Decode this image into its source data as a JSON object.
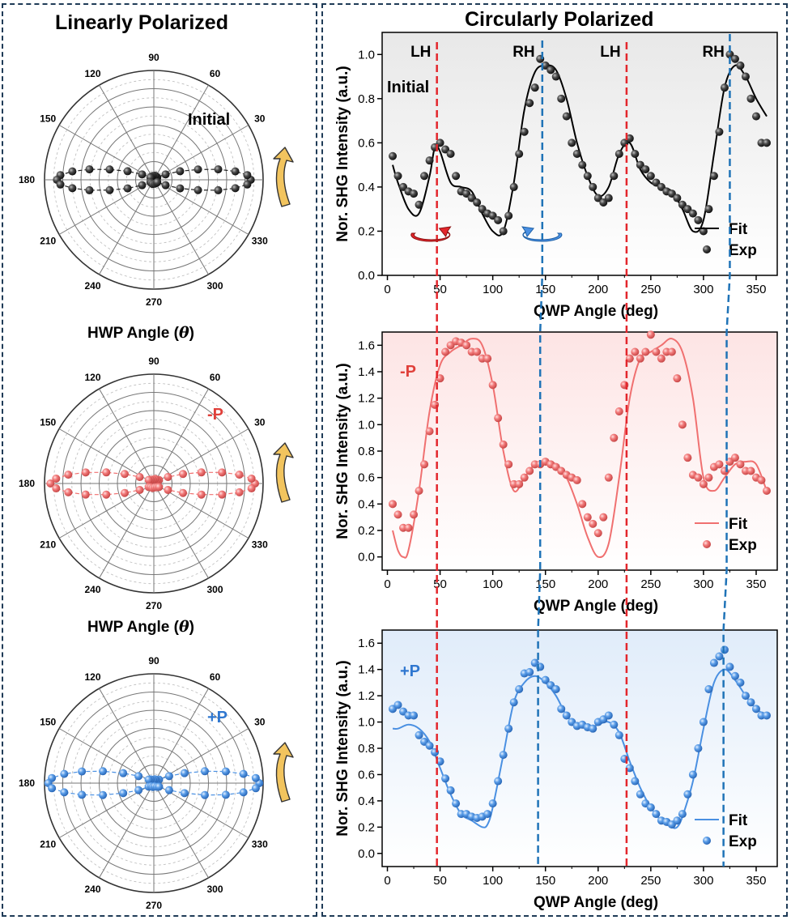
{
  "left_title": "Linearly Polarized",
  "right_title": "Circularly Polarized",
  "hwp_label_prefix": "HWP Angle (",
  "hwp_label_var": "θ",
  "hwp_label_suffix": ")",
  "colors": {
    "black": "#2b2b2b",
    "red": "#f07070",
    "blue": "#4a90e2",
    "red_text": "#e0403a",
    "blue_text": "#2f77d0",
    "lh_line": "#e3262c",
    "rh_line": "#1f73b7",
    "arrow_yellow": "#f2c45e",
    "border": "#1f3b57"
  },
  "chart_data": [
    {
      "type": "polar",
      "label": "Initial",
      "angle_ticks": [
        "90",
        "60",
        "30",
        "0",
        "330",
        "300",
        "270",
        "240",
        "210",
        "180",
        "150",
        "120"
      ],
      "series": [
        {
          "name": "Exp",
          "marker": "sphere",
          "color": "black",
          "r": [
            0.9,
            0.88,
            0.8,
            0.68,
            0.52,
            0.36,
            0.2,
            0.08,
            0.1,
            0.13,
            0.12,
            0.1,
            0.08,
            0.2,
            0.36,
            0.52,
            0.68,
            0.8,
            0.88,
            0.9,
            0.88,
            0.8,
            0.68,
            0.52,
            0.36,
            0.2,
            0.08,
            0.1,
            0.13,
            0.12,
            0.1,
            0.08,
            0.2,
            0.36,
            0.52,
            0.68,
            0.8,
            0.88
          ]
        },
        {
          "name": "Fit",
          "style": "dashed",
          "color": "black"
        }
      ]
    },
    {
      "type": "polar",
      "label": "-P",
      "angle_ticks": [
        "90",
        "60",
        "30",
        "0",
        "330",
        "300",
        "270",
        "240",
        "210",
        "180",
        "150",
        "120"
      ],
      "series": [
        {
          "name": "Exp",
          "marker": "sphere",
          "color": "red",
          "r": [
            0.94,
            0.92,
            0.84,
            0.72,
            0.56,
            0.4,
            0.24,
            0.12,
            0.12,
            0.14,
            0.12,
            0.12,
            0.12,
            0.24,
            0.4,
            0.56,
            0.72,
            0.84,
            0.92,
            0.96,
            0.92,
            0.84,
            0.72,
            0.56,
            0.4,
            0.24,
            0.12,
            0.12,
            0.14,
            0.12,
            0.12,
            0.12,
            0.24,
            0.4,
            0.56,
            0.72,
            0.84,
            0.92
          ]
        },
        {
          "name": "Fit",
          "style": "dashed",
          "color": "red"
        }
      ]
    },
    {
      "type": "polar",
      "label": "+P",
      "angle_ticks": [
        "90",
        "60",
        "30",
        "0",
        "330",
        "300",
        "270",
        "240",
        "210",
        "180",
        "150",
        "120"
      ],
      "series": [
        {
          "name": "Exp",
          "marker": "sphere",
          "color": "blue",
          "r": [
            0.98,
            0.96,
            0.88,
            0.76,
            0.6,
            0.42,
            0.26,
            0.12,
            0.1,
            0.12,
            0.1,
            0.12,
            0.12,
            0.26,
            0.42,
            0.6,
            0.76,
            0.88,
            0.96,
            0.98,
            0.96,
            0.88,
            0.76,
            0.6,
            0.42,
            0.26,
            0.12,
            0.1,
            0.12,
            0.1,
            0.12,
            0.12,
            0.26,
            0.42,
            0.6,
            0.76,
            0.88,
            0.96
          ]
        },
        {
          "name": "Fit",
          "style": "dashed",
          "color": "blue"
        }
      ]
    },
    {
      "type": "line",
      "label": "Initial",
      "xlabel": "QWP Angle (deg)",
      "ylabel": "Nor. SHG Intensity (a.u.)",
      "xlim": [
        -5,
        370
      ],
      "ylim": [
        0,
        1.1
      ],
      "xticks": [
        0,
        50,
        100,
        150,
        200,
        250,
        300,
        350
      ],
      "yticks": [
        0.0,
        0.2,
        0.4,
        0.6,
        0.8,
        1.0
      ],
      "legend": "bottom-right",
      "color": "black",
      "markers": [
        {
          "text": "LH",
          "x": 45
        },
        {
          "text": "RH",
          "x": 145
        },
        {
          "text": "LH",
          "x": 225
        },
        {
          "text": "RH",
          "x": 325
        }
      ],
      "series": [
        {
          "name": "Fit",
          "x": [
            5,
            10,
            20,
            30,
            40,
            45,
            50,
            60,
            70,
            80,
            90,
            100,
            110,
            120,
            130,
            140,
            150,
            160,
            170,
            180,
            190,
            200,
            210,
            220,
            230,
            240,
            250,
            260,
            270,
            280,
            290,
            300,
            310,
            320,
            330,
            340,
            350,
            360
          ],
          "y": [
            0.5,
            0.42,
            0.3,
            0.28,
            0.45,
            0.58,
            0.56,
            0.42,
            0.4,
            0.38,
            0.28,
            0.2,
            0.2,
            0.42,
            0.75,
            0.92,
            0.95,
            0.93,
            0.8,
            0.6,
            0.45,
            0.36,
            0.4,
            0.55,
            0.6,
            0.48,
            0.42,
            0.4,
            0.38,
            0.3,
            0.2,
            0.25,
            0.55,
            0.85,
            0.95,
            0.9,
            0.8,
            0.72
          ]
        },
        {
          "name": "Exp",
          "x": [
            5,
            10,
            15,
            20,
            25,
            30,
            35,
            40,
            45,
            50,
            55,
            60,
            65,
            70,
            75,
            80,
            85,
            90,
            95,
            100,
            105,
            110,
            115,
            120,
            125,
            130,
            135,
            140,
            145,
            150,
            155,
            160,
            165,
            170,
            175,
            180,
            185,
            190,
            195,
            200,
            205,
            210,
            215,
            220,
            225,
            230,
            235,
            240,
            245,
            250,
            255,
            260,
            265,
            270,
            275,
            280,
            285,
            290,
            295,
            300,
            305,
            310,
            315,
            320,
            325,
            330,
            335,
            340,
            345,
            350,
            355,
            360
          ],
          "y": [
            0.54,
            0.45,
            0.4,
            0.38,
            0.37,
            0.32,
            0.45,
            0.52,
            0.58,
            0.6,
            0.57,
            0.55,
            0.45,
            0.38,
            0.37,
            0.35,
            0.33,
            0.3,
            0.28,
            0.27,
            0.25,
            0.2,
            0.27,
            0.4,
            0.55,
            0.65,
            0.78,
            0.85,
            0.98,
            0.95,
            0.93,
            0.9,
            0.8,
            0.72,
            0.6,
            0.55,
            0.5,
            0.45,
            0.4,
            0.35,
            0.33,
            0.35,
            0.45,
            0.55,
            0.6,
            0.62,
            0.55,
            0.5,
            0.48,
            0.45,
            0.42,
            0.4,
            0.38,
            0.37,
            0.35,
            0.32,
            0.3,
            0.28,
            0.25,
            0.2,
            0.3,
            0.45,
            0.65,
            0.85,
            1.0,
            0.98,
            0.95,
            0.9,
            0.8,
            0.72,
            0.6,
            0.6
          ]
        }
      ]
    },
    {
      "type": "line",
      "label": "-P",
      "xlabel": "QWP Angle (deg)",
      "ylabel": "Nor. SHG Intensity (a.u.)",
      "xlim": [
        -5,
        370
      ],
      "ylim": [
        -0.1,
        1.7
      ],
      "xticks": [
        0,
        50,
        100,
        150,
        200,
        250,
        300,
        350
      ],
      "yticks": [
        0.0,
        0.2,
        0.4,
        0.6,
        0.8,
        1.0,
        1.2,
        1.4,
        1.6
      ],
      "legend": "bottom-right",
      "color": "red",
      "series": [
        {
          "name": "Fit",
          "x": [
            5,
            10,
            15,
            20,
            30,
            40,
            50,
            60,
            70,
            80,
            90,
            100,
            110,
            120,
            130,
            140,
            150,
            160,
            170,
            180,
            190,
            200,
            210,
            220,
            230,
            240,
            250,
            260,
            270,
            280,
            290,
            300,
            310,
            320,
            330,
            340,
            350,
            360
          ],
          "y": [
            0.2,
            0.05,
            0.0,
            0.05,
            0.5,
            1.1,
            1.45,
            1.55,
            1.6,
            1.65,
            1.6,
            1.3,
            0.8,
            0.5,
            0.6,
            0.7,
            0.72,
            0.7,
            0.6,
            0.4,
            0.15,
            0.0,
            0.1,
            0.6,
            1.2,
            1.5,
            1.55,
            1.6,
            1.65,
            1.55,
            1.2,
            0.6,
            0.5,
            0.6,
            0.7,
            0.72,
            0.7,
            0.5
          ]
        },
        {
          "name": "Exp",
          "x": [
            5,
            10,
            15,
            20,
            25,
            30,
            35,
            40,
            45,
            50,
            55,
            60,
            65,
            70,
            75,
            80,
            85,
            90,
            95,
            100,
            105,
            110,
            115,
            120,
            125,
            130,
            135,
            140,
            145,
            150,
            155,
            160,
            165,
            170,
            175,
            180,
            185,
            190,
            195,
            200,
            205,
            210,
            215,
            220,
            225,
            230,
            235,
            240,
            245,
            250,
            255,
            260,
            265,
            270,
            275,
            280,
            285,
            290,
            295,
            300,
            305,
            310,
            315,
            320,
            325,
            330,
            335,
            340,
            345,
            350,
            355,
            360
          ],
          "y": [
            0.4,
            0.32,
            0.22,
            0.22,
            0.32,
            0.5,
            0.7,
            0.95,
            1.15,
            1.35,
            1.55,
            1.6,
            1.63,
            1.62,
            1.6,
            1.55,
            1.55,
            1.5,
            1.5,
            1.3,
            1.05,
            0.85,
            0.7,
            0.55,
            0.55,
            0.6,
            0.65,
            0.7,
            0.7,
            0.72,
            0.7,
            0.68,
            0.65,
            0.62,
            0.6,
            0.58,
            0.4,
            0.3,
            0.25,
            0.18,
            0.3,
            0.6,
            0.9,
            1.1,
            1.3,
            1.5,
            1.55,
            1.5,
            1.55,
            1.68,
            1.55,
            1.5,
            1.55,
            1.55,
            1.35,
            1.0,
            0.75,
            0.62,
            0.6,
            0.55,
            0.6,
            0.68,
            0.7,
            0.65,
            0.72,
            0.75,
            0.7,
            0.65,
            0.65,
            0.6,
            0.58,
            0.5
          ]
        }
      ]
    },
    {
      "type": "line",
      "label": "+P",
      "xlabel": "QWP Angle (deg)",
      "ylabel": "Nor. SHG Intensity (a.u.)",
      "xlim": [
        -5,
        370
      ],
      "ylim": [
        -0.1,
        1.7
      ],
      "xticks": [
        0,
        50,
        100,
        150,
        200,
        250,
        300,
        350
      ],
      "yticks": [
        0.0,
        0.2,
        0.4,
        0.6,
        0.8,
        1.0,
        1.2,
        1.4,
        1.6
      ],
      "legend": "bottom-right",
      "color": "blue",
      "series": [
        {
          "name": "Fit",
          "x": [
            5,
            10,
            20,
            30,
            40,
            50,
            60,
            70,
            80,
            90,
            95,
            100,
            110,
            120,
            130,
            140,
            150,
            160,
            170,
            180,
            190,
            200,
            210,
            220,
            230,
            240,
            250,
            260,
            270,
            275,
            280,
            290,
            300,
            310,
            320,
            330,
            340,
            350,
            360
          ],
          "y": [
            0.95,
            0.95,
            0.98,
            0.95,
            0.85,
            0.65,
            0.45,
            0.3,
            0.25,
            0.2,
            0.22,
            0.35,
            0.75,
            1.15,
            1.3,
            1.35,
            1.3,
            1.2,
            1.05,
            0.98,
            0.95,
            0.98,
            1.0,
            0.92,
            0.7,
            0.5,
            0.35,
            0.25,
            0.2,
            0.2,
            0.28,
            0.55,
            0.95,
            1.3,
            1.4,
            1.32,
            1.2,
            1.1,
            1.05
          ]
        },
        {
          "name": "Exp",
          "x": [
            5,
            10,
            15,
            20,
            25,
            30,
            35,
            40,
            45,
            50,
            55,
            60,
            65,
            70,
            75,
            80,
            85,
            90,
            95,
            100,
            105,
            110,
            115,
            120,
            125,
            130,
            135,
            140,
            145,
            150,
            155,
            160,
            165,
            170,
            175,
            180,
            185,
            190,
            195,
            200,
            205,
            210,
            215,
            220,
            225,
            230,
            235,
            240,
            245,
            250,
            255,
            260,
            265,
            270,
            275,
            280,
            285,
            290,
            295,
            300,
            305,
            310,
            315,
            320,
            325,
            330,
            335,
            340,
            345,
            350,
            355,
            360
          ],
          "y": [
            1.1,
            1.13,
            1.08,
            1.05,
            1.05,
            0.9,
            0.85,
            0.82,
            0.77,
            0.7,
            0.57,
            0.48,
            0.38,
            0.3,
            0.3,
            0.28,
            0.27,
            0.28,
            0.3,
            0.38,
            0.55,
            0.75,
            0.95,
            1.15,
            1.25,
            1.37,
            1.38,
            1.45,
            1.42,
            1.32,
            1.28,
            1.25,
            1.1,
            1.05,
            1.0,
            0.97,
            0.98,
            0.96,
            0.95,
            1.0,
            1.02,
            1.05,
            0.98,
            0.9,
            0.72,
            0.65,
            0.55,
            0.45,
            0.38,
            0.35,
            0.3,
            0.25,
            0.24,
            0.22,
            0.25,
            0.3,
            0.45,
            0.6,
            0.8,
            1.0,
            1.25,
            1.45,
            1.5,
            1.55,
            1.42,
            1.35,
            1.3,
            1.2,
            1.15,
            1.1,
            1.05,
            1.05
          ]
        }
      ]
    }
  ],
  "rh_arrow_labels": {
    "fit": "Fit",
    "exp": "Exp"
  }
}
